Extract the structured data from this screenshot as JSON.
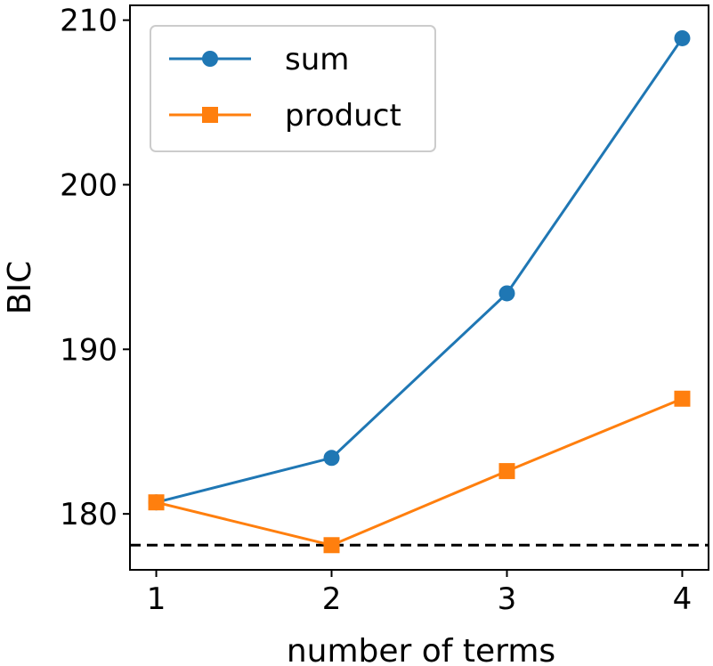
{
  "chart_data": {
    "type": "line",
    "title": "",
    "xlabel": "number of terms",
    "ylabel": "BIC",
    "x": [
      1,
      2,
      3,
      4
    ],
    "xticks": [
      "1",
      "2",
      "3",
      "4"
    ],
    "yticks": [
      "180",
      "190",
      "200",
      "210"
    ],
    "ylim": [
      176.6,
      210.9
    ],
    "xlim": [
      0.85,
      4.15
    ],
    "grid": false,
    "legend_position": "top-left",
    "series": [
      {
        "name": "sum",
        "values": [
          180.7,
          183.4,
          193.4,
          208.9
        ],
        "color": "#1f77b4",
        "marker": "circle"
      },
      {
        "name": "product",
        "values": [
          180.7,
          178.1,
          182.6,
          187.0
        ],
        "color": "#ff7f0e",
        "marker": "square"
      }
    ],
    "reference_line": {
      "y": 178.1,
      "style": "dashed",
      "color": "#000000"
    }
  }
}
